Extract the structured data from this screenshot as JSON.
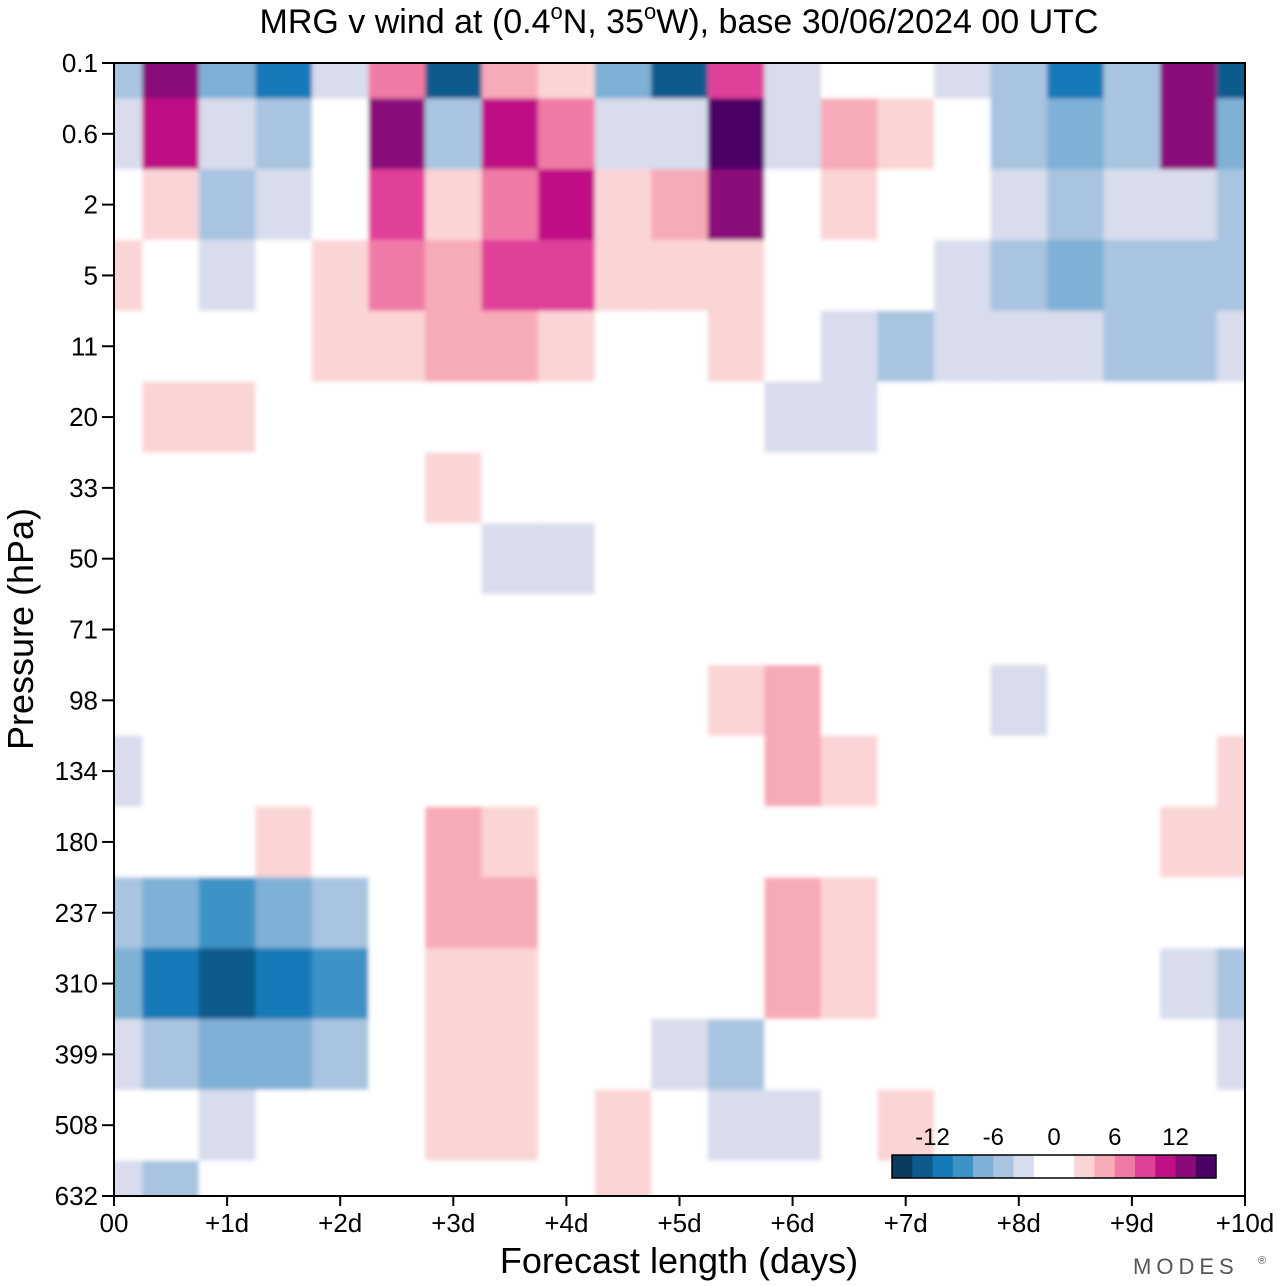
{
  "chart_data": {
    "type": "heatmap",
    "title_parts": {
      "prefix": "MRG v wind at (0.4",
      "lat_suffix": "N, 35",
      "lon_suffix": "W),  base 30/06/2024  00 UTC",
      "degree": "o"
    },
    "xlabel": "Forecast length (days)",
    "ylabel": "Pressure (hPa)",
    "x_ticks": [
      "00",
      "+1d",
      "+2d",
      "+3d",
      "+4d",
      "+5d",
      "+6d",
      "+7d",
      "+8d",
      "+9d",
      "+10d"
    ],
    "x_range_days": [
      0,
      10
    ],
    "y_ticks": [
      "0.1",
      "0.6",
      "2",
      "5",
      "11",
      "20",
      "33",
      "50",
      "71",
      "98",
      "134",
      "180",
      "237",
      "310",
      "399",
      "508",
      "632"
    ],
    "y_axis_direction": "pressure decreases upward",
    "colorbar": {
      "ticks": [
        "-12",
        "-6",
        "0",
        "6",
        "12"
      ],
      "levels": [
        -14,
        -12,
        -10,
        -8,
        -6,
        -4,
        -2,
        0,
        2,
        4,
        6,
        8,
        10,
        12,
        14
      ],
      "colors": [
        "#0b3c5d",
        "#0d5a8c",
        "#1479b8",
        "#3d93c6",
        "#7fb0d6",
        "#a8c4e0",
        "#d8dcec",
        "#ffffff",
        "#ffffff",
        "#fbd4d6",
        "#f7aab8",
        "#f07aa6",
        "#e0409a",
        "#bf1185",
        "#8a0a7a",
        "#4b0066"
      ],
      "placement": "bottom-right inside plot"
    },
    "grid": false,
    "cells": {
      "description_units": "v wind (m/s), rows = y_ticks levels top→bottom, columns = forecast days 0..10 in half-day steps",
      "columns": [
        0,
        0.5,
        1,
        1.5,
        2,
        2.5,
        3,
        3.5,
        4,
        4.5,
        5,
        5.5,
        6,
        6.5,
        7,
        7.5,
        8,
        8.5,
        9,
        9.5,
        10
      ],
      "rows": [
        [
          -6,
          13,
          -8,
          -11,
          -4,
          6,
          -14,
          4,
          2,
          -8,
          -14,
          8,
          -3,
          0,
          0,
          -3,
          -6,
          -12,
          -6,
          12,
          -14
        ],
        [
          -4,
          10,
          -3,
          -5,
          -1,
          12,
          -6,
          10,
          7,
          -4,
          -4,
          14,
          -4,
          4,
          3,
          -2,
          -6,
          -8,
          -5,
          12,
          -8
        ],
        [
          0,
          2,
          -6,
          -3,
          0,
          8,
          2,
          6,
          10,
          2,
          4,
          12,
          -2,
          2,
          0,
          -2,
          -4,
          -5,
          -4,
          -3,
          -6
        ],
        [
          3,
          1,
          -3,
          0,
          3,
          7,
          4,
          8,
          8,
          3,
          2,
          2,
          0,
          -1,
          -2,
          -3,
          -6,
          -8,
          -6,
          -5,
          -6
        ],
        [
          -2,
          0,
          0,
          0,
          2,
          3,
          5,
          4,
          2,
          0,
          -2,
          3,
          -2,
          -4,
          -5,
          -4,
          -3,
          -4,
          -6,
          -6,
          -4
        ],
        [
          0,
          3,
          2,
          0,
          0,
          -2,
          -2,
          -2,
          0,
          -2,
          -2,
          0,
          -3,
          -4,
          -2,
          0,
          -2,
          0,
          -2,
          -2,
          -2
        ],
        [
          0,
          0,
          0,
          0,
          0,
          0,
          3,
          0,
          -2,
          -2,
          -2,
          -2,
          -2,
          -2,
          0,
          -2,
          -2,
          -2,
          0,
          0,
          0
        ],
        [
          0,
          0,
          0,
          0,
          0,
          0,
          -2,
          -3,
          -3,
          -2,
          0,
          0,
          0,
          -2,
          -2,
          -2,
          -2,
          0,
          0,
          0,
          0
        ],
        [
          -2,
          0,
          0,
          0,
          0,
          -2,
          -2,
          0,
          0,
          0,
          0,
          -2,
          0,
          0,
          0,
          0,
          0,
          -2,
          -2,
          -2,
          -2
        ],
        [
          0,
          0,
          0,
          0,
          -2,
          -2,
          0,
          0,
          0,
          0,
          0,
          3,
          4,
          0,
          -2,
          -2,
          -3,
          -2,
          0,
          0,
          0
        ],
        [
          -4,
          -2,
          0,
          0,
          0,
          0,
          0,
          0,
          0,
          0,
          0,
          0,
          5,
          3,
          0,
          0,
          -2,
          0,
          0,
          0,
          3
        ],
        [
          0,
          0,
          0,
          3,
          0,
          0,
          4,
          3,
          0,
          0,
          0,
          0,
          0,
          0,
          0,
          -2,
          -2,
          0,
          0,
          3,
          3
        ],
        [
          -6,
          -8,
          -10,
          -8,
          -6,
          0,
          5,
          4,
          0,
          0,
          0,
          0,
          5,
          3,
          0,
          0,
          0,
          0,
          0,
          0,
          -2
        ],
        [
          -8,
          -12,
          -14,
          -12,
          -10,
          0,
          3,
          2,
          0,
          0,
          -2,
          0,
          4,
          2,
          0,
          -2,
          -2,
          -2,
          -2,
          -4,
          -6
        ],
        [
          -4,
          -6,
          -8,
          -8,
          -6,
          0,
          2,
          2,
          0,
          0,
          -3,
          -5,
          -2,
          0,
          0,
          -2,
          -2,
          -2,
          -2,
          -2,
          -4
        ],
        [
          -2,
          -2,
          -3,
          -2,
          -2,
          0,
          2,
          2,
          0,
          2,
          -2,
          -3,
          -3,
          0,
          2,
          0,
          0,
          0,
          0,
          -2,
          -2
        ],
        [
          -4,
          -5,
          -2,
          -2,
          0,
          0,
          0,
          0,
          0,
          2,
          0,
          -2,
          -2,
          0,
          0,
          0,
          -2,
          -2,
          -2,
          -2,
          -2
        ]
      ]
    }
  },
  "branding": {
    "text": "MODES",
    "mark": "®"
  }
}
